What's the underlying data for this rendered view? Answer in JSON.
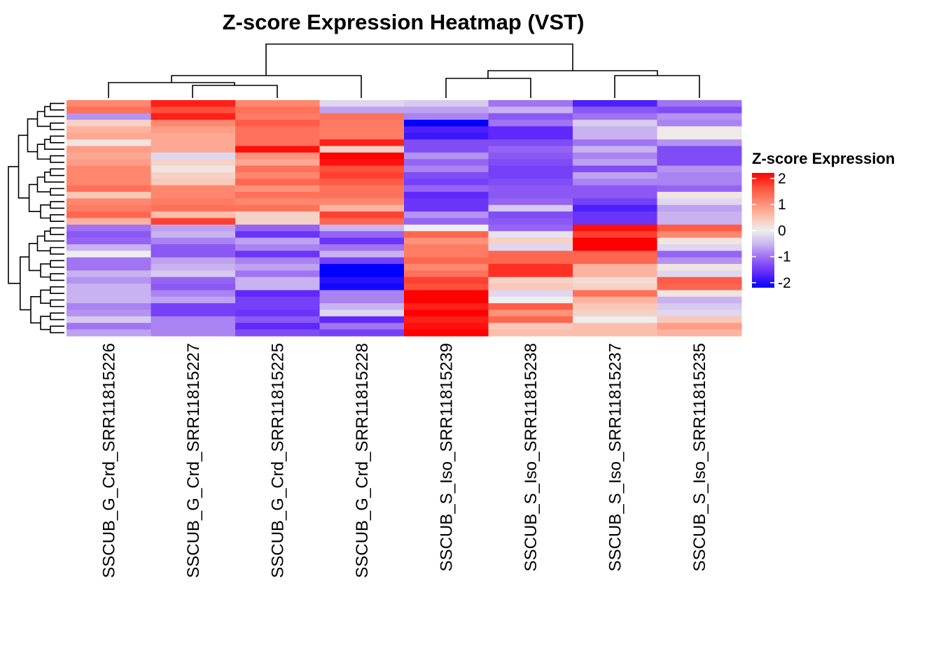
{
  "chart_data": {
    "type": "heatmap",
    "title": "Z-score Expression Heatmap (VST)",
    "columns": [
      "SSCUB_G_Crd_SRR11815226",
      "SSCUB_G_Crd_SRR11815227",
      "SSCUB_G_Crd_SRR11815225",
      "SSCUB_G_Crd_SRR11815228",
      "SSCUB_S_Iso_SRR11815239",
      "SSCUB_S_Iso_SRR11815238",
      "SSCUB_S_Iso_SRR11815237",
      "SSCUB_S_Iso_SRR11815235"
    ],
    "legend": {
      "title": "Z-score Expression",
      "ticks": [
        "2",
        "1",
        "0",
        "-1",
        "-2"
      ],
      "range": [
        -2,
        2
      ],
      "placement": "right"
    },
    "colors": {
      "low": "#0000ff",
      "mid": "#eeeeee",
      "high": "#ff0000"
    },
    "row_clusters": [
      19,
      17
    ],
    "values": [
      [
        1.0,
        1.8,
        1.0,
        -0.2,
        -0.3,
        -0.9,
        -1.6,
        -0.9
      ],
      [
        1.2,
        1.5,
        1.2,
        -0.6,
        -0.6,
        -0.5,
        -1.1,
        -1.2
      ],
      [
        -0.7,
        1.8,
        1.1,
        1.2,
        -0.8,
        -1.1,
        -0.9,
        -0.7
      ],
      [
        0.3,
        1.0,
        1.4,
        1.1,
        -2.0,
        -0.9,
        -0.3,
        -0.8
      ],
      [
        0.6,
        0.8,
        1.2,
        1.1,
        -1.6,
        -1.5,
        -0.5,
        0.05
      ],
      [
        0.7,
        0.7,
        1.2,
        1.1,
        -1.7,
        -1.5,
        -0.5,
        0.05
      ],
      [
        0.1,
        0.7,
        1.2,
        1.8,
        -1.2,
        -1.2,
        -0.9,
        -0.7
      ],
      [
        0.8,
        0.7,
        1.9,
        0.3,
        -1.2,
        -1.0,
        -0.5,
        -1.2
      ],
      [
        0.7,
        -0.2,
        0.9,
        2.0,
        -0.7,
        -1.1,
        -0.8,
        -1.2
      ],
      [
        0.8,
        0.3,
        0.7,
        1.9,
        -1.0,
        -1.2,
        -0.6,
        -1.2
      ],
      [
        1.0,
        0.1,
        1.2,
        1.5,
        -0.8,
        -1.3,
        -1.2,
        -0.7
      ],
      [
        1.0,
        0.3,
        1.0,
        1.6,
        -1.2,
        -1.3,
        -0.6,
        -0.8
      ],
      [
        1.0,
        0.4,
        1.3,
        1.4,
        -1.3,
        -1.2,
        -0.8,
        -0.8
      ],
      [
        1.2,
        1.0,
        0.9,
        1.2,
        -1.0,
        -1.1,
        -1.1,
        -1.0
      ],
      [
        0.4,
        1.0,
        1.2,
        1.2,
        -1.5,
        -1.1,
        -1.1,
        0.1
      ],
      [
        1.0,
        1.1,
        1.0,
        1.0,
        -1.4,
        -1.0,
        -1.3,
        -0.2
      ],
      [
        1.1,
        1.2,
        1.2,
        0.6,
        -1.4,
        -0.3,
        -1.6,
        -0.6
      ],
      [
        1.3,
        0.5,
        0.3,
        1.6,
        -0.7,
        -1.2,
        -1.4,
        -0.5
      ],
      [
        0.6,
        1.6,
        0.3,
        1.3,
        -1.0,
        -1.1,
        -1.4,
        -0.5
      ],
      [
        -0.9,
        -0.6,
        -1.0,
        -0.5,
        0.0,
        -1.0,
        1.9,
        1.4
      ],
      [
        -1.1,
        -0.5,
        -1.4,
        -1.0,
        1.3,
        -0.1,
        1.6,
        1.0
      ],
      [
        -1.0,
        -0.8,
        -0.6,
        -1.4,
        0.9,
        0.3,
        2.0,
        0.1
      ],
      [
        -0.5,
        -1.1,
        -0.8,
        -0.9,
        1.1,
        -0.2,
        2.0,
        -0.2
      ],
      [
        0.0,
        -1.1,
        -1.4,
        -0.5,
        1.1,
        1.3,
        1.3,
        -1.0
      ],
      [
        -0.9,
        -0.6,
        -0.8,
        -1.3,
        1.3,
        1.3,
        1.3,
        -0.7
      ],
      [
        -0.9,
        -0.5,
        -0.6,
        -2.0,
        1.0,
        1.7,
        0.6,
        0.1
      ],
      [
        -0.5,
        -0.3,
        -0.9,
        -2.0,
        1.2,
        1.7,
        0.6,
        -0.2
      ],
      [
        -0.7,
        -1.0,
        -0.5,
        -1.8,
        1.6,
        0.3,
        0.2,
        1.4
      ],
      [
        -0.5,
        -1.1,
        -0.5,
        -1.9,
        1.5,
        0.4,
        0.3,
        1.3
      ],
      [
        -0.5,
        -0.8,
        -1.5,
        -0.8,
        2.0,
        -0.2,
        1.2,
        0.1
      ],
      [
        -0.5,
        -0.6,
        -1.3,
        -0.8,
        2.0,
        0.0,
        0.6,
        -0.5
      ],
      [
        -0.8,
        -1.3,
        -1.3,
        -0.5,
        1.8,
        1.4,
        0.4,
        -0.3
      ],
      [
        -0.7,
        -1.3,
        -1.4,
        -0.2,
        2.0,
        0.9,
        0.3,
        -0.2
      ],
      [
        -0.3,
        -0.8,
        -1.1,
        -1.5,
        1.8,
        1.3,
        0.0,
        0.4
      ],
      [
        -0.9,
        -0.8,
        -1.5,
        -0.9,
        1.9,
        0.4,
        0.5,
        0.8
      ],
      [
        -0.6,
        -0.8,
        -1.2,
        -1.3,
        2.0,
        0.5,
        0.5,
        0.6
      ]
    ]
  }
}
